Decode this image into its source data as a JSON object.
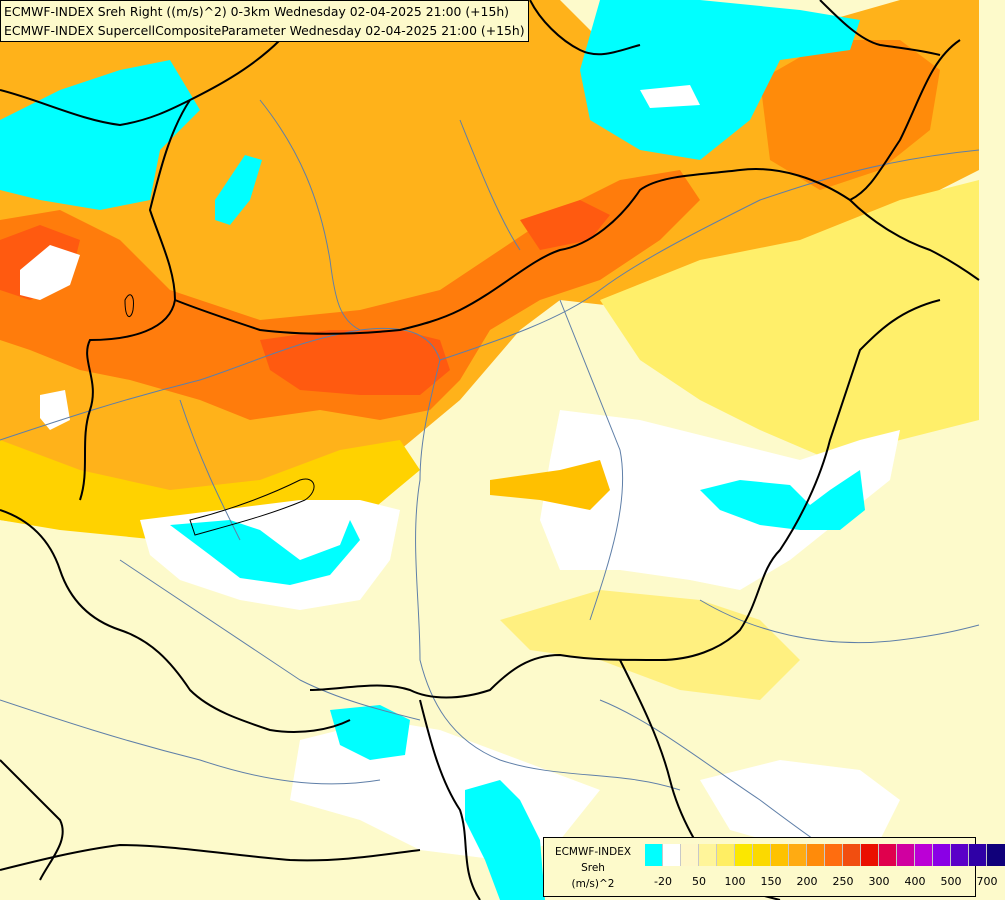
{
  "title": {
    "line1": "ECMWF-INDEX Sreh Right ((m/s)^2) 0-3km Wednesday 02-04-2025 21:00 (+15h)",
    "line2": "ECMWF-INDEX SupercellCompositeParameter Wednesday 02-04-2025 21:00 (+15h)"
  },
  "legend": {
    "source": "ECMWF-INDEX",
    "variable": "Sreh",
    "unit": "(m/s)^2",
    "colors": [
      "#00ffff",
      "#ffffff",
      "#fff7c8",
      "#fff59a",
      "#ffee63",
      "#fbe700",
      "#fbd900",
      "#fec200",
      "#ffab12",
      "#ff8b0a",
      "#ff6d0f",
      "#f14e10",
      "#ea0f00",
      "#e0004d",
      "#d000a0",
      "#bb00d6",
      "#8a00e6",
      "#5a00c8",
      "#2f00a6",
      "#10007a"
    ],
    "ticks": [
      {
        "label": "-20",
        "index": 1
      },
      {
        "label": "50",
        "index": 3
      },
      {
        "label": "100",
        "index": 5
      },
      {
        "label": "150",
        "index": 7
      },
      {
        "label": "200",
        "index": 9
      },
      {
        "label": "250",
        "index": 11
      },
      {
        "label": "300",
        "index": 13
      },
      {
        "label": "400",
        "index": 15
      },
      {
        "label": "500",
        "index": 17
      },
      {
        "label": "700",
        "index": 19
      }
    ]
  }
}
